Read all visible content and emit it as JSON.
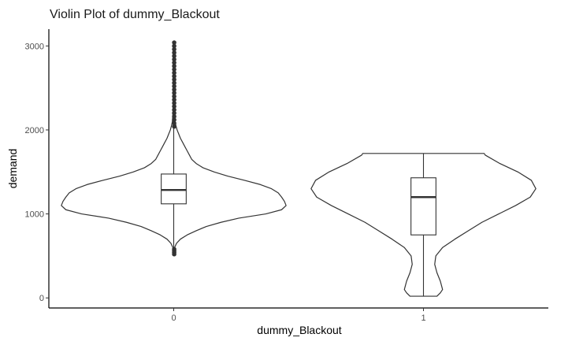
{
  "chart_data": {
    "type": "violin",
    "title": "Violin Plot of dummy_Blackout",
    "xlabel": "dummy_Blackout",
    "ylabel": "demand",
    "categories": [
      "0",
      "1"
    ],
    "ylim": [
      -120,
      3200
    ],
    "yticks": [
      0,
      1000,
      2000,
      3000
    ],
    "grid": false,
    "colors": {
      "line": "#333333",
      "axis": "#000000",
      "text": "#4d4d4d",
      "outlier": "#333333"
    },
    "groups": [
      {
        "category": "0",
        "box": {
          "q1": 1120,
          "median": 1285,
          "q3": 1475,
          "whisker_low": 590,
          "whisker_high": 2030
        },
        "outliers": [
          520,
          540,
          560,
          580,
          2040,
          2080,
          2120,
          2160,
          2200,
          2240,
          2280,
          2320,
          2360,
          2400,
          2440,
          2480,
          2520,
          2560,
          2600,
          2640,
          2680,
          2720,
          2760,
          2800,
          2840,
          2880,
          2920,
          2960,
          3000,
          3040
        ],
        "density": [
          [
            520,
            0.0
          ],
          [
            570,
            0.003
          ],
          [
            600,
            0.008
          ],
          [
            650,
            0.025
          ],
          [
            700,
            0.06
          ],
          [
            750,
            0.12
          ],
          [
            800,
            0.2
          ],
          [
            850,
            0.29
          ],
          [
            900,
            0.42
          ],
          [
            950,
            0.58
          ],
          [
            1000,
            0.82
          ],
          [
            1050,
            0.96
          ],
          [
            1100,
            1.0
          ],
          [
            1150,
            0.985
          ],
          [
            1200,
            0.96
          ],
          [
            1250,
            0.93
          ],
          [
            1300,
            0.87
          ],
          [
            1350,
            0.77
          ],
          [
            1400,
            0.63
          ],
          [
            1450,
            0.48
          ],
          [
            1500,
            0.36
          ],
          [
            1550,
            0.26
          ],
          [
            1600,
            0.2
          ],
          [
            1650,
            0.16
          ],
          [
            1700,
            0.14
          ],
          [
            1750,
            0.12
          ],
          [
            1800,
            0.1
          ],
          [
            1850,
            0.08
          ],
          [
            1900,
            0.06
          ],
          [
            1950,
            0.045
          ],
          [
            2000,
            0.03
          ],
          [
            2050,
            0.02
          ],
          [
            2100,
            0.012
          ],
          [
            2200,
            0.007
          ],
          [
            2400,
            0.005
          ],
          [
            2700,
            0.004
          ],
          [
            3050,
            0.0
          ]
        ]
      },
      {
        "category": "1",
        "box": {
          "q1": 750,
          "median": 1200,
          "q3": 1430,
          "whisker_low": 20,
          "whisker_high": 1720
        },
        "outliers": [],
        "density": [
          [
            20,
            0.12
          ],
          [
            60,
            0.15
          ],
          [
            100,
            0.17
          ],
          [
            200,
            0.15
          ],
          [
            300,
            0.12
          ],
          [
            400,
            0.1
          ],
          [
            500,
            0.11
          ],
          [
            600,
            0.17
          ],
          [
            700,
            0.28
          ],
          [
            800,
            0.4
          ],
          [
            900,
            0.52
          ],
          [
            1000,
            0.67
          ],
          [
            1100,
            0.82
          ],
          [
            1200,
            0.95
          ],
          [
            1300,
            1.0
          ],
          [
            1400,
            0.96
          ],
          [
            1500,
            0.84
          ],
          [
            1600,
            0.68
          ],
          [
            1700,
            0.55
          ],
          [
            1720,
            0.54
          ]
        ]
      }
    ]
  }
}
